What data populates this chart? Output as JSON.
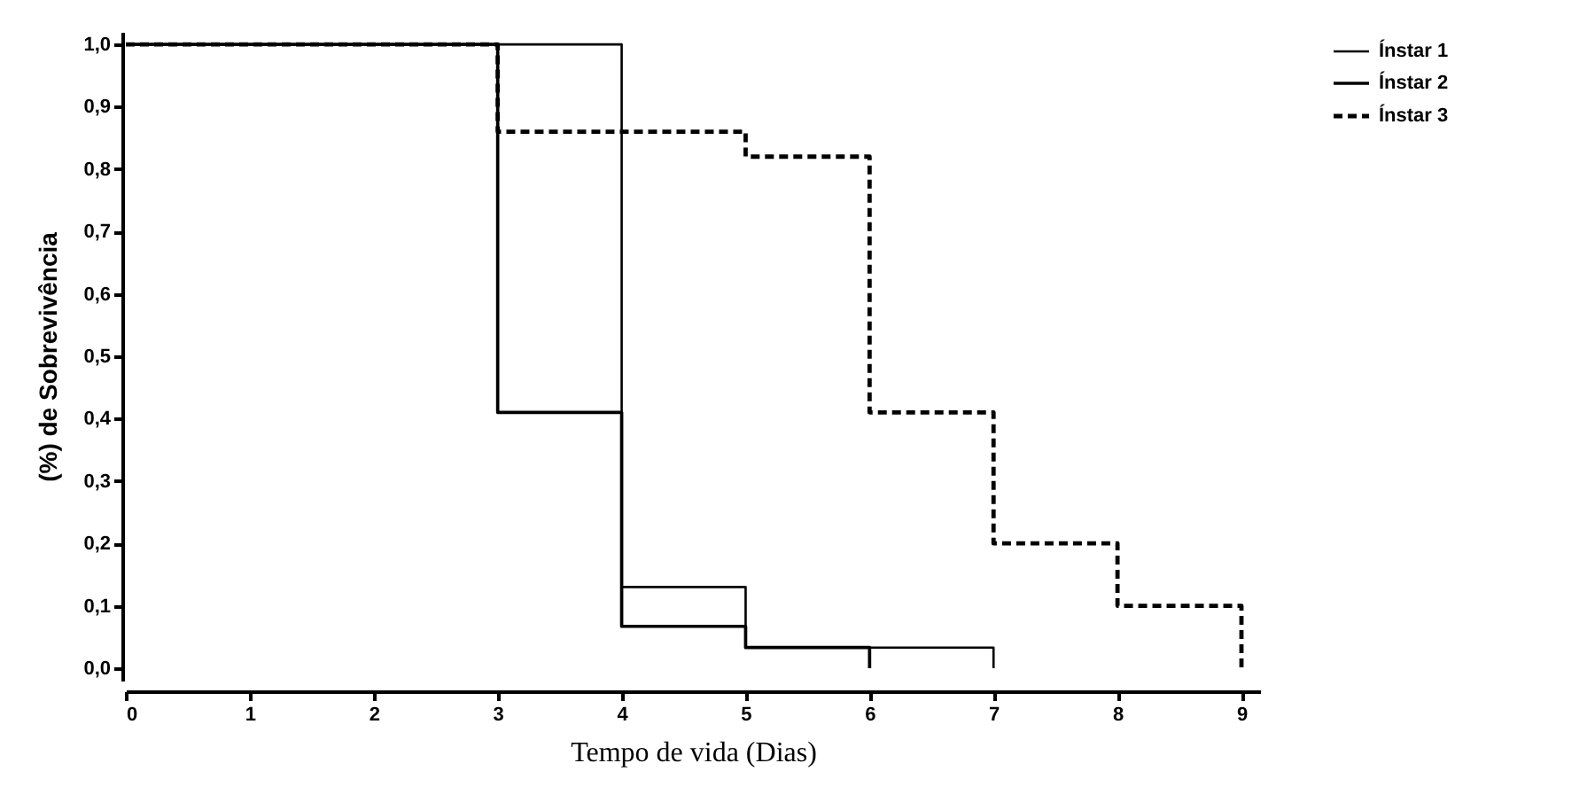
{
  "chart_data": {
    "type": "step",
    "xlabel": "Tempo de vida (Dias)",
    "ylabel": "(%) de Sobrevivência",
    "xlim": [
      0,
      9.15
    ],
    "ylim": [
      -0.02,
      1.02
    ],
    "xticks": [
      0,
      1,
      2,
      3,
      4,
      5,
      6,
      7,
      8,
      9
    ],
    "yticks": [
      {
        "value": 0,
        "label": "0,0"
      },
      {
        "value": 0.1,
        "label": "0,1"
      },
      {
        "value": 0.2,
        "label": "0,2"
      },
      {
        "value": 0.3,
        "label": "0,3"
      },
      {
        "value": 0.4,
        "label": "0,4"
      },
      {
        "value": 0.5,
        "label": "0,5"
      },
      {
        "value": 0.6,
        "label": "0,6"
      },
      {
        "value": 0.7,
        "label": "0,7"
      },
      {
        "value": 0.8,
        "label": "0,8"
      },
      {
        "value": 0.9,
        "label": "0,9"
      },
      {
        "value": 1,
        "label": "1,0"
      }
    ],
    "grid": false,
    "legend": "top right",
    "series": [
      {
        "name": "Ínstar 1",
        "color": "#000000",
        "line_style": "solid",
        "x": [
          0,
          4,
          5,
          7
        ],
        "values": [
          1.0,
          0.13,
          0.033,
          0
        ]
      },
      {
        "name": "Ínstar 2",
        "color": "#000000",
        "line_style": "solid",
        "x": [
          0,
          3,
          4,
          5,
          6
        ],
        "values": [
          1.0,
          0.41,
          0.067,
          0.033,
          0
        ]
      },
      {
        "name": "Ínstar 3",
        "color": "#000000",
        "line_style": "dashed",
        "x": [
          0,
          3,
          5,
          6,
          7,
          8,
          9
        ],
        "values": [
          1.0,
          0.86,
          0.82,
          0.41,
          0.2,
          0.1,
          0
        ]
      }
    ]
  }
}
